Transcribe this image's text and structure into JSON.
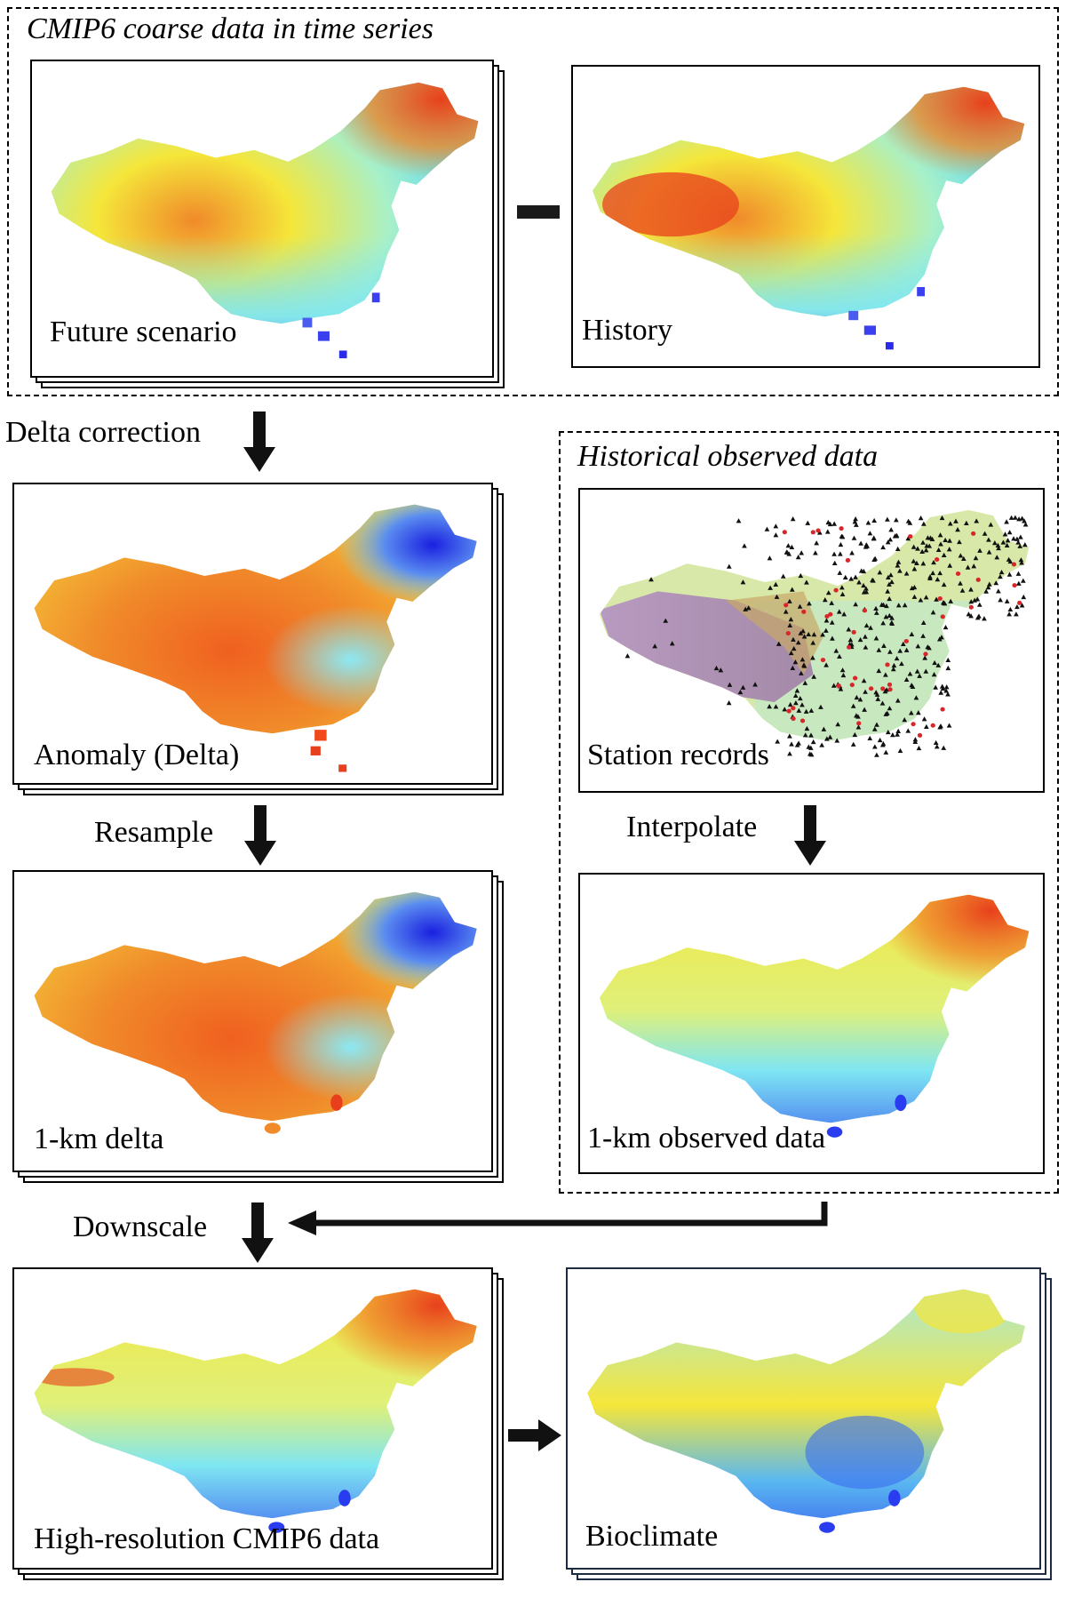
{
  "groups": {
    "cmip6": {
      "title": "CMIP6 coarse data in time series"
    },
    "observed": {
      "title": "Historical observed data"
    }
  },
  "panels": {
    "future": {
      "label": "Future scenario"
    },
    "history": {
      "label": "History"
    },
    "anomaly": {
      "label": "Anomaly (Delta)"
    },
    "station": {
      "label": "Station records"
    },
    "delta_1km": {
      "label": "1-km delta"
    },
    "observed_1km": {
      "label": "1-km observed data"
    },
    "highres": {
      "label": "High-resolution CMIP6 data"
    },
    "bioclimate": {
      "label": "Bioclimate"
    }
  },
  "steps": {
    "delta_correction": "Delta correction",
    "resample": "Resample",
    "interpolate": "Interpolate",
    "downscale": "Downscale"
  },
  "operators": {
    "minus": "minus"
  },
  "colors": {
    "red": "#e8401c",
    "orange": "#f08a2a",
    "yellow": "#f5e63a",
    "cyan": "#7fe6f2",
    "blue": "#2a3cf0",
    "navy_border": "#1c2a44",
    "station_dot": "#d8262a",
    "station_triangle": "#111111"
  }
}
